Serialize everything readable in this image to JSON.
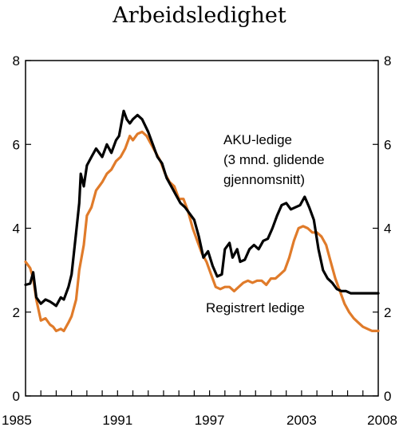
{
  "chart_data": {
    "type": "line",
    "title": "Arbeidsledighet",
    "xlim": [
      1985,
      2008
    ],
    "ylim": [
      0,
      8
    ],
    "x_ticks": [
      1985,
      1991,
      1997,
      2003,
      2008
    ],
    "x_tick_labels": [
      "1985",
      "1991",
      "1997",
      "2003",
      "2008"
    ],
    "y_ticks": [
      0,
      2,
      4,
      6,
      8
    ],
    "y_tick_labels": [
      "0",
      "2",
      "4",
      "6",
      "8"
    ],
    "grid": false,
    "series": [
      {
        "name": "AKU-ledige (3 mnd. glidende gjennomsnitt)",
        "color": "#000000",
        "label_lines": [
          "AKU-ledige",
          "(3 mnd. glidende",
          "gjennomsnitt)"
        ],
        "x": [
          1985.0,
          1985.3,
          1985.5,
          1985.7,
          1986.0,
          1986.3,
          1986.6,
          1986.8,
          1987.0,
          1987.3,
          1987.5,
          1987.8,
          1988.0,
          1988.3,
          1988.5,
          1988.6,
          1988.8,
          1989.0,
          1989.3,
          1989.6,
          1990.0,
          1990.3,
          1990.6,
          1990.9,
          1991.1,
          1991.4,
          1991.6,
          1991.8,
          1992.0,
          1992.3,
          1992.6,
          1993.0,
          1993.3,
          1993.6,
          1993.9,
          1994.2,
          1994.5,
          1994.8,
          1995.1,
          1995.4,
          1995.7,
          1996.0,
          1996.3,
          1996.6,
          1996.9,
          1997.2,
          1997.5,
          1997.8,
          1998.0,
          1998.3,
          1998.5,
          1998.8,
          1999.0,
          1999.3,
          1999.6,
          1999.9,
          2000.2,
          2000.5,
          2000.8,
          2001.1,
          2001.4,
          2001.7,
          2002.0,
          2002.3,
          2002.6,
          2002.9,
          2003.2,
          2003.5,
          2003.8,
          2004.1,
          2004.4,
          2004.7,
          2005.0,
          2005.3,
          2005.6,
          2005.9,
          2006.2,
          2006.5,
          2006.8,
          2007.1,
          2007.4,
          2007.7,
          2008.0
        ],
        "y": [
          2.65,
          2.68,
          2.95,
          2.35,
          2.2,
          2.3,
          2.25,
          2.2,
          2.15,
          2.35,
          2.3,
          2.6,
          2.9,
          3.9,
          4.6,
          5.3,
          5.0,
          5.5,
          5.7,
          5.9,
          5.7,
          6.0,
          5.8,
          6.1,
          6.2,
          6.8,
          6.6,
          6.5,
          6.6,
          6.7,
          6.6,
          6.3,
          6.0,
          5.7,
          5.55,
          5.2,
          5.0,
          4.8,
          4.6,
          4.5,
          4.35,
          4.2,
          3.8,
          3.3,
          3.45,
          3.1,
          2.85,
          2.9,
          3.5,
          3.65,
          3.3,
          3.5,
          3.2,
          3.25,
          3.5,
          3.6,
          3.5,
          3.7,
          3.75,
          4.0,
          4.3,
          4.55,
          4.6,
          4.45,
          4.5,
          4.55,
          4.75,
          4.5,
          4.2,
          3.5,
          3.0,
          2.8,
          2.7,
          2.55,
          2.5,
          2.5,
          2.45,
          2.45,
          2.45,
          2.45,
          2.45,
          2.45,
          2.45
        ]
      },
      {
        "name": "Registrert ledige",
        "color": "#e07b2a",
        "label_lines": [
          "Registrert ledige"
        ],
        "x": [
          1985.0,
          1985.3,
          1985.5,
          1985.7,
          1986.0,
          1986.3,
          1986.6,
          1986.8,
          1987.0,
          1987.3,
          1987.5,
          1987.8,
          1988.0,
          1988.3,
          1988.5,
          1988.8,
          1989.0,
          1989.3,
          1989.6,
          1990.0,
          1990.3,
          1990.6,
          1990.9,
          1991.2,
          1991.5,
          1991.8,
          1992.0,
          1992.3,
          1992.6,
          1992.9,
          1993.2,
          1993.5,
          1993.8,
          1994.1,
          1994.4,
          1994.7,
          1995.0,
          1995.3,
          1995.6,
          1995.9,
          1996.2,
          1996.5,
          1996.8,
          1997.1,
          1997.4,
          1997.7,
          1998.0,
          1998.3,
          1998.6,
          1998.9,
          1999.2,
          1999.5,
          1999.8,
          2000.1,
          2000.4,
          2000.7,
          2001.0,
          2001.3,
          2001.6,
          2001.9,
          2002.2,
          2002.5,
          2002.8,
          2003.1,
          2003.4,
          2003.7,
          2004.0,
          2004.3,
          2004.6,
          2004.9,
          2005.2,
          2005.5,
          2005.8,
          2006.1,
          2006.4,
          2006.7,
          2007.0,
          2007.3,
          2007.6,
          2007.9,
          2008.0
        ],
        "y": [
          3.2,
          3.05,
          2.8,
          2.3,
          1.8,
          1.85,
          1.7,
          1.65,
          1.55,
          1.6,
          1.55,
          1.75,
          1.9,
          2.3,
          3.0,
          3.6,
          4.3,
          4.5,
          4.9,
          5.1,
          5.3,
          5.4,
          5.6,
          5.7,
          5.9,
          6.2,
          6.1,
          6.25,
          6.3,
          6.2,
          6.0,
          5.8,
          5.6,
          5.3,
          5.1,
          5.0,
          4.7,
          4.7,
          4.4,
          4.0,
          3.7,
          3.4,
          3.2,
          2.9,
          2.6,
          2.55,
          2.6,
          2.6,
          2.5,
          2.6,
          2.7,
          2.75,
          2.7,
          2.75,
          2.75,
          2.65,
          2.8,
          2.8,
          2.9,
          3.0,
          3.3,
          3.7,
          4.0,
          4.05,
          4.0,
          3.9,
          3.9,
          3.8,
          3.6,
          3.2,
          2.8,
          2.5,
          2.2,
          2.0,
          1.85,
          1.75,
          1.65,
          1.6,
          1.55,
          1.55,
          1.55
        ]
      }
    ]
  }
}
